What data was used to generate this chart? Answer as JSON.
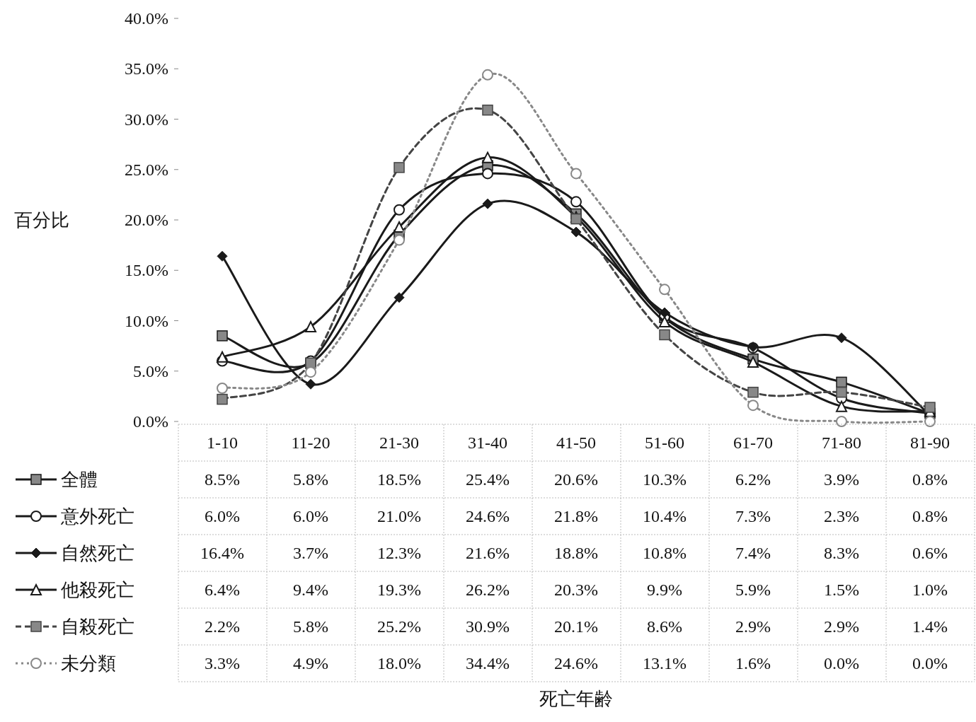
{
  "chart_data": {
    "type": "line",
    "annotations": [
      "死亡年齢"
    ],
    "ylabel": "百分比",
    "categories": [
      "1-10",
      "11-20",
      "21-30",
      "31-40",
      "41-50",
      "51-60",
      "61-70",
      "71-80",
      "81-90"
    ],
    "ylim": [
      0,
      40
    ],
    "yticks": [
      {
        "value": 0,
        "label": "0.0%"
      },
      {
        "value": 5,
        "label": "5.0%"
      },
      {
        "value": 10,
        "label": "10.0%"
      },
      {
        "value": 15,
        "label": "15.0%"
      },
      {
        "value": 20,
        "label": "20.0%"
      },
      {
        "value": 25,
        "label": "25.0%"
      },
      {
        "value": 30,
        "label": "30.0%"
      },
      {
        "value": 35,
        "label": "35.0%"
      },
      {
        "value": 40,
        "label": "40.0%"
      }
    ],
    "legend": "bottom",
    "series": [
      {
        "name": "全體",
        "color": "#1a1a1a",
        "marker": "square",
        "line_style": "solid",
        "values": [
          8.5,
          5.8,
          18.5,
          25.4,
          20.6,
          10.3,
          6.2,
          3.9,
          0.8
        ],
        "value_labels": [
          "8.5%",
          "5.8%",
          "18.5%",
          "25.4%",
          "20.6%",
          "10.3%",
          "6.2%",
          "3.9%",
          "0.8%"
        ]
      },
      {
        "name": "意外死亡",
        "color": "#1a1a1a",
        "marker": "circle",
        "line_style": "solid",
        "values": [
          6.0,
          6.0,
          21.0,
          24.6,
          21.8,
          10.4,
          7.3,
          2.3,
          0.8
        ],
        "value_labels": [
          "6.0%",
          "6.0%",
          "21.0%",
          "24.6%",
          "21.8%",
          "10.4%",
          "7.3%",
          "2.3%",
          "0.8%"
        ]
      },
      {
        "name": "自然死亡",
        "color": "#1a1a1a",
        "marker": "diamond",
        "line_style": "solid",
        "values": [
          16.4,
          3.7,
          12.3,
          21.6,
          18.8,
          10.8,
          7.4,
          8.3,
          0.6
        ],
        "value_labels": [
          "16.4%",
          "3.7%",
          "12.3%",
          "21.6%",
          "18.8%",
          "10.8%",
          "7.4%",
          "8.3%",
          "0.6%"
        ]
      },
      {
        "name": "他殺死亡",
        "color": "#1a1a1a",
        "marker": "triangle",
        "line_style": "solid",
        "values": [
          6.4,
          9.4,
          19.3,
          26.2,
          20.3,
          9.9,
          5.9,
          1.5,
          1.0
        ],
        "value_labels": [
          "6.4%",
          "9.4%",
          "19.3%",
          "26.2%",
          "20.3%",
          "9.9%",
          "5.9%",
          "1.5%",
          "1.0%"
        ]
      },
      {
        "name": "自殺死亡",
        "color": "#444444",
        "marker": "square",
        "line_style": "dashed",
        "values": [
          2.2,
          5.8,
          25.2,
          30.9,
          20.1,
          8.6,
          2.9,
          2.9,
          1.4
        ],
        "value_labels": [
          "2.2%",
          "5.8%",
          "25.2%",
          "30.9%",
          "20.1%",
          "8.6%",
          "2.9%",
          "2.9%",
          "1.4%"
        ]
      },
      {
        "name": "未分類",
        "color": "#888888",
        "marker": "circle",
        "line_style": "dotted",
        "values": [
          3.3,
          4.9,
          18.0,
          34.4,
          24.6,
          13.1,
          1.6,
          0.0,
          0.0
        ],
        "value_labels": [
          "3.3%",
          "4.9%",
          "18.0%",
          "34.4%",
          "24.6%",
          "13.1%",
          "1.6%",
          "0.0%",
          "0.0%"
        ]
      }
    ]
  }
}
